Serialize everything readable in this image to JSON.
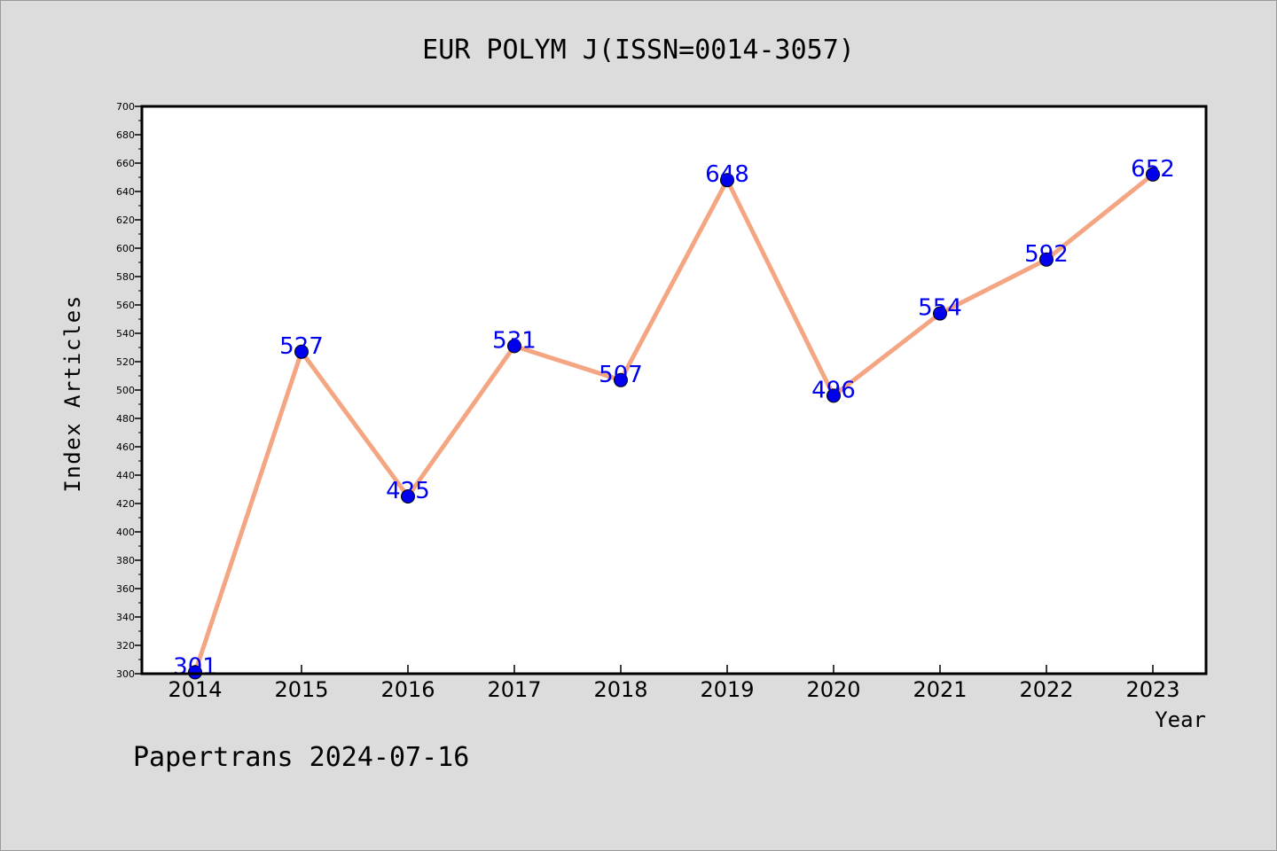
{
  "chart_data": {
    "type": "line",
    "title": "EUR POLYM J(ISSN=0014-3057)",
    "xlabel": "Year",
    "ylabel": "Index Articles",
    "categories": [
      "2014",
      "2015",
      "2016",
      "2017",
      "2018",
      "2019",
      "2020",
      "2021",
      "2022",
      "2023"
    ],
    "series": [
      {
        "values": [
          301,
          527,
          425,
          531,
          507,
          648,
          496,
          554,
          592,
          652
        ],
        "line_color": "#f4a582",
        "marker_color": "#0000ee",
        "label_color": "#0000ee"
      }
    ],
    "ylim": [
      300,
      700
    ],
    "yticks": [
      300,
      320,
      340,
      360,
      380,
      400,
      420,
      440,
      460,
      480,
      500,
      520,
      540,
      560,
      580,
      600,
      620,
      640,
      660,
      680,
      700
    ],
    "grid": false,
    "legend": "none",
    "annotation": "Papertrans 2024-07-16"
  },
  "colors": {
    "background": "#dcdcdc",
    "plot_background": "#ffffff",
    "axis": "#000000"
  }
}
